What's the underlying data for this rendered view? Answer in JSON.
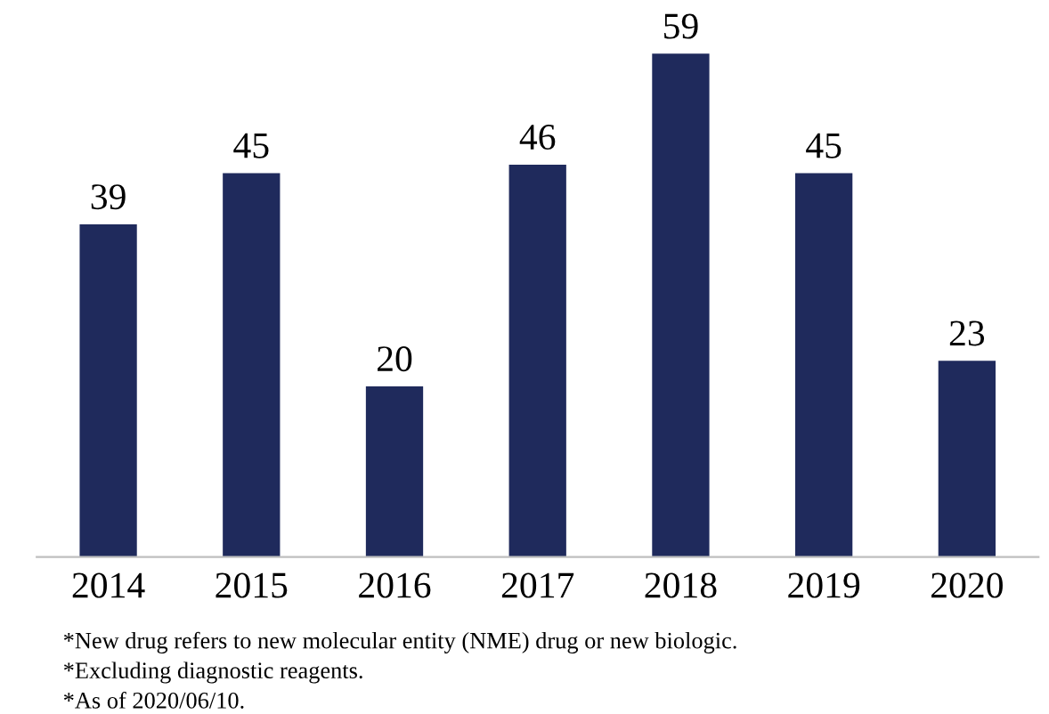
{
  "chart_data": {
    "type": "bar",
    "categories": [
      "2014",
      "2015",
      "2016",
      "2017",
      "2018",
      "2019",
      "2020"
    ],
    "values": [
      39,
      45,
      20,
      46,
      59,
      45,
      23
    ],
    "color": "#1f2a5c",
    "data_labels": true,
    "grid": false,
    "annotations": [
      "*New drug refers to new molecular entity (NME) drug or new biologic.",
      "*Excluding diagnostic reagents.",
      "*As of 2020/06/10."
    ]
  }
}
